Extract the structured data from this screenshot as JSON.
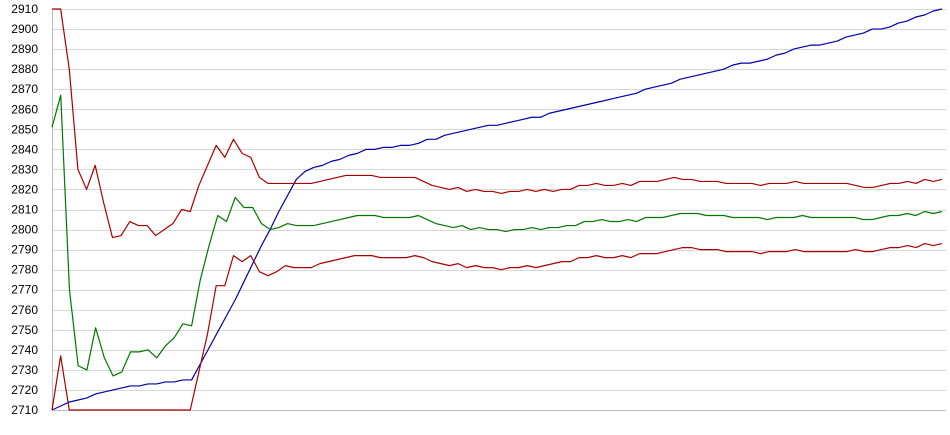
{
  "chart_data": {
    "type": "line",
    "title": "",
    "xlabel": "",
    "ylabel": "",
    "ylim": [
      2710,
      2910
    ],
    "yticks": [
      2710,
      2720,
      2730,
      2740,
      2750,
      2760,
      2770,
      2780,
      2790,
      2800,
      2810,
      2820,
      2830,
      2840,
      2850,
      2860,
      2870,
      2880,
      2890,
      2900,
      2910
    ],
    "grid": true,
    "legend": "none",
    "series": [
      {
        "color": "#0000aa",
        "values": [
          2710,
          2712,
          2714,
          2715,
          2716,
          2718,
          2719,
          2720,
          2721,
          2722,
          2722,
          2723,
          2723,
          2724,
          2724,
          2725,
          2725,
          2733,
          2741,
          2749,
          2757,
          2765,
          2774,
          2783,
          2792,
          2800,
          2809,
          2817,
          2825,
          2829,
          2831,
          2832,
          2834,
          2835,
          2837,
          2838,
          2840,
          2840,
          2841,
          2841,
          2842,
          2842,
          2843,
          2845,
          2845,
          2847,
          2848,
          2849,
          2850,
          2851,
          2852,
          2852,
          2853,
          2854,
          2855,
          2856,
          2856,
          2858,
          2859,
          2860,
          2861,
          2862,
          2863,
          2864,
          2865,
          2866,
          2867,
          2868,
          2870,
          2871,
          2872,
          2873,
          2875,
          2876,
          2877,
          2878,
          2879,
          2880,
          2882,
          2883,
          2883,
          2884,
          2885,
          2887,
          2888,
          2890,
          2891,
          2892,
          2892,
          2893,
          2894,
          2896,
          2897,
          2898,
          2900,
          2900,
          2901,
          2903,
          2904,
          2906,
          2907,
          2909,
          2910
        ]
      },
      {
        "color": "#aa0000",
        "values": [
          2910,
          2910,
          2880,
          2830,
          2820,
          2832,
          2813,
          2796,
          2797,
          2804,
          2802,
          2802,
          2797,
          2800,
          2803,
          2810,
          2809,
          2822,
          2832,
          2842,
          2836,
          2845,
          2838,
          2836,
          2826,
          2823,
          2823,
          2823,
          2823,
          2823,
          2823,
          2824,
          2825,
          2826,
          2827,
          2827,
          2827,
          2827,
          2826,
          2826,
          2826,
          2826,
          2826,
          2824,
          2822,
          2821,
          2820,
          2821,
          2819,
          2820,
          2819,
          2819,
          2818,
          2819,
          2819,
          2820,
          2819,
          2820,
          2819,
          2820,
          2820,
          2822,
          2822,
          2823,
          2822,
          2822,
          2823,
          2822,
          2824,
          2824,
          2824,
          2825,
          2826,
          2825,
          2825,
          2824,
          2824,
          2824,
          2823,
          2823,
          2823,
          2823,
          2822,
          2823,
          2823,
          2823,
          2824,
          2823,
          2823,
          2823,
          2823,
          2823,
          2823,
          2822,
          2821,
          2821,
          2822,
          2823,
          2823,
          2824,
          2823,
          2825,
          2824,
          2825
        ]
      },
      {
        "color": "#007700",
        "values": [
          2851,
          2867,
          2770,
          2732,
          2730,
          2751,
          2736,
          2727,
          2729,
          2739,
          2739,
          2740,
          2736,
          2742,
          2746,
          2753,
          2752,
          2775,
          2792,
          2807,
          2804,
          2816,
          2811,
          2811,
          2803,
          2800,
          2801,
          2803,
          2802,
          2802,
          2802,
          2803,
          2804,
          2805,
          2806,
          2807,
          2807,
          2807,
          2806,
          2806,
          2806,
          2806,
          2807,
          2805,
          2803,
          2802,
          2801,
          2802,
          2800,
          2801,
          2800,
          2800,
          2799,
          2800,
          2800,
          2801,
          2800,
          2801,
          2801,
          2802,
          2802,
          2804,
          2804,
          2805,
          2804,
          2804,
          2805,
          2804,
          2806,
          2806,
          2806,
          2807,
          2808,
          2808,
          2808,
          2807,
          2807,
          2807,
          2806,
          2806,
          2806,
          2806,
          2805,
          2806,
          2806,
          2806,
          2807,
          2806,
          2806,
          2806,
          2806,
          2806,
          2806,
          2805,
          2805,
          2806,
          2807,
          2807,
          2808,
          2807,
          2809,
          2808,
          2809
        ]
      },
      {
        "color": "#aa0000",
        "values": [
          2710,
          2737,
          2710,
          2710,
          2710,
          2710,
          2710,
          2710,
          2710,
          2710,
          2710,
          2710,
          2710,
          2710,
          2710,
          2710,
          2710,
          2729,
          2748,
          2772,
          2772,
          2787,
          2784,
          2787,
          2779,
          2777,
          2779,
          2782,
          2781,
          2781,
          2781,
          2783,
          2784,
          2785,
          2786,
          2787,
          2787,
          2787,
          2786,
          2786,
          2786,
          2786,
          2787,
          2786,
          2784,
          2783,
          2782,
          2783,
          2781,
          2782,
          2781,
          2781,
          2780,
          2781,
          2781,
          2782,
          2781,
          2782,
          2783,
          2784,
          2784,
          2786,
          2786,
          2787,
          2786,
          2786,
          2787,
          2786,
          2788,
          2788,
          2788,
          2789,
          2790,
          2791,
          2791,
          2790,
          2790,
          2790,
          2789,
          2789,
          2789,
          2789,
          2788,
          2789,
          2789,
          2789,
          2790,
          2789,
          2789,
          2789,
          2789,
          2789,
          2789,
          2790,
          2789,
          2789,
          2790,
          2791,
          2791,
          2792,
          2791,
          2793,
          2792,
          2793
        ]
      }
    ]
  }
}
